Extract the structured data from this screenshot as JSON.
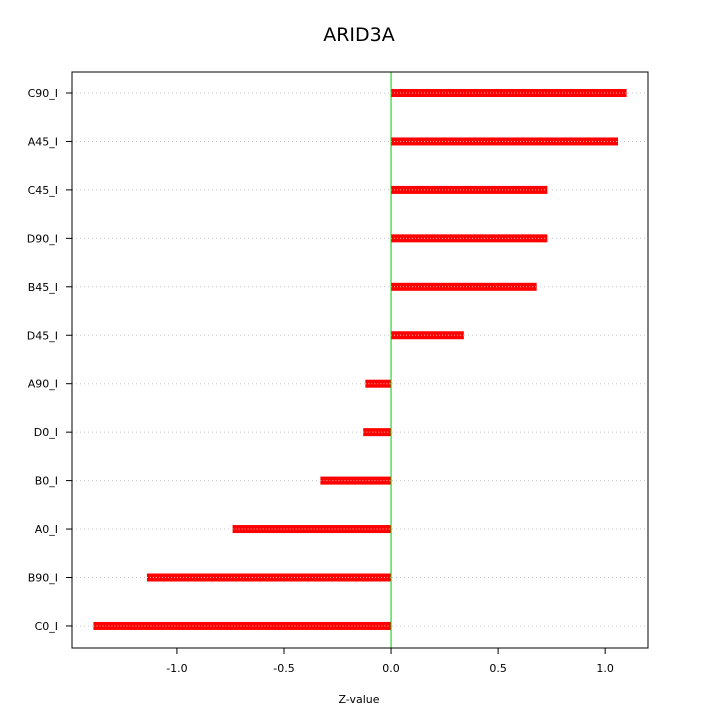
{
  "chart_data": {
    "type": "bar",
    "orientation": "horizontal",
    "title": "ARID3A",
    "xlabel": "Z-value",
    "ylabel": "",
    "xlim": [
      -1.49,
      1.2
    ],
    "x_ticks": [
      -1.0,
      -0.5,
      0.0,
      0.5,
      1.0
    ],
    "x_tick_labels": [
      "-1.0",
      "-0.5",
      "0.0",
      "0.5",
      "1.0"
    ],
    "categories": [
      "C90_I",
      "A45_I",
      "C45_I",
      "D90_I",
      "B45_I",
      "D45_I",
      "A90_I",
      "D0_I",
      "B0_I",
      "A0_I",
      "B90_I",
      "C0_I"
    ],
    "values": [
      1.1,
      1.06,
      0.73,
      0.73,
      0.68,
      0.34,
      -0.12,
      -0.13,
      -0.33,
      -0.74,
      -1.14,
      -1.39
    ],
    "reference_line_x": 0.0,
    "grid": "horizontal-dotted",
    "colors": {
      "bar": "#ff0000",
      "bar_center": "#ffb0b0",
      "reference_line": "#00cc00",
      "grid": "#c8c8c8"
    }
  }
}
